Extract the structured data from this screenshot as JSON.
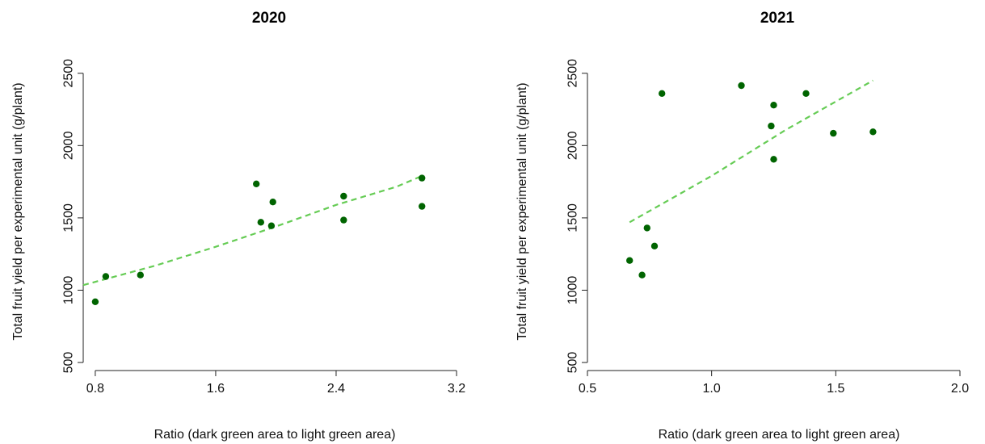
{
  "colors": {
    "point": "#006400",
    "fit": "#66cc55",
    "axis": "#222222"
  },
  "chart_data": [
    {
      "type": "scatter",
      "title": "2020",
      "xlabel": "Ratio (dark green area to light green area)",
      "ylabel": "Total fruit yield per experimental unit (g/plant)",
      "xlim": [
        0.72,
        3.2
      ],
      "ylim": [
        450,
        2560
      ],
      "xticks": [
        0.8,
        1.6,
        2.4,
        3.2
      ],
      "yticks": [
        500,
        1000,
        1500,
        2000,
        2500
      ],
      "points": [
        {
          "x": 0.8,
          "y": 920
        },
        {
          "x": 0.87,
          "y": 1095
        },
        {
          "x": 1.1,
          "y": 1105
        },
        {
          "x": 1.87,
          "y": 1735
        },
        {
          "x": 1.9,
          "y": 1470
        },
        {
          "x": 1.97,
          "y": 1445
        },
        {
          "x": 1.98,
          "y": 1610
        },
        {
          "x": 2.45,
          "y": 1650
        },
        {
          "x": 2.45,
          "y": 1485
        },
        {
          "x": 2.97,
          "y": 1775
        },
        {
          "x": 2.97,
          "y": 1580
        }
      ],
      "trend": {
        "style": "dashed",
        "x": [
          0.72,
          1.2,
          1.6,
          2.0,
          2.4,
          2.8,
          2.97
        ],
        "y": [
          1035,
          1170,
          1300,
          1440,
          1590,
          1715,
          1790
        ]
      }
    },
    {
      "type": "scatter",
      "title": "2021",
      "xlabel": "Ratio (dark green area to light green area)",
      "ylabel": "Total fruit yield per experimental unit (g/plant)",
      "xlim": [
        0.5,
        2.0
      ],
      "ylim": [
        450,
        2560
      ],
      "xticks": [
        0.5,
        1.0,
        1.5,
        2.0
      ],
      "yticks": [
        500,
        1000,
        1500,
        2000,
        2500
      ],
      "points": [
        {
          "x": 0.67,
          "y": 1205
        },
        {
          "x": 0.72,
          "y": 1105
        },
        {
          "x": 0.74,
          "y": 1430
        },
        {
          "x": 0.77,
          "y": 1305
        },
        {
          "x": 0.8,
          "y": 2360
        },
        {
          "x": 1.12,
          "y": 2415
        },
        {
          "x": 1.24,
          "y": 2135
        },
        {
          "x": 1.25,
          "y": 2280
        },
        {
          "x": 1.25,
          "y": 1905
        },
        {
          "x": 1.38,
          "y": 2360
        },
        {
          "x": 1.49,
          "y": 2085
        },
        {
          "x": 1.65,
          "y": 2095
        }
      ],
      "trend": {
        "style": "dashed",
        "x": [
          0.67,
          1.0,
          1.3,
          1.65
        ],
        "y": [
          1470,
          1790,
          2110,
          2450
        ]
      }
    }
  ]
}
